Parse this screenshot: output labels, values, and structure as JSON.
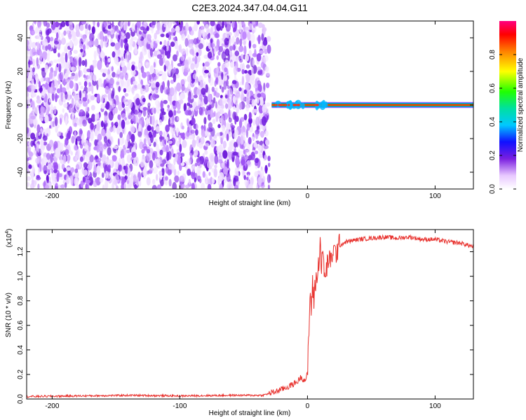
{
  "title": "C2E3.2024.347.04.04.G11",
  "chart_data": [
    {
      "type": "heatmap",
      "xlabel": "Height of straight line (km)",
      "ylabel": "Frequency (Hz)",
      "xlim": [
        -220,
        130
      ],
      "ylim": [
        -50,
        50
      ],
      "xticks": [
        -200,
        -100,
        0,
        100
      ],
      "yticks": [
        -40,
        -20,
        0,
        20,
        40
      ],
      "noise_region_x": [
        -220,
        -30
      ],
      "signal": {
        "x_start": -28,
        "x_end": 130,
        "frequency": 0
      },
      "colorbar": {
        "label": "Normalized spectral amplitude",
        "range": [
          0,
          1
        ],
        "ticks": [
          "0.0",
          "0.2",
          "0.4",
          "0.6",
          "0.8"
        ],
        "tick_values": [
          0,
          0.2,
          0.4,
          0.6,
          0.8
        ]
      }
    },
    {
      "type": "line",
      "xlabel": "Height of straight line (km)",
      "ylabel": "SNR (10 * v/v)",
      "multiplier_label": "(x10",
      "multiplier_exp": "4",
      "multiplier_close": ")",
      "xlim": [
        -220,
        130
      ],
      "ylim": [
        0,
        1.38
      ],
      "xticks": [
        -200,
        -100,
        0,
        100
      ],
      "yticks": [
        0,
        0.2,
        0.4,
        0.6,
        0.8,
        1.0,
        1.2
      ],
      "ytick_labels": [
        "0.0",
        "0.2",
        "0.4",
        "0.6",
        "0.8",
        "1.0",
        "1.2"
      ],
      "series": [
        {
          "color": "#e8322e",
          "x": [
            -220,
            -180,
            -140,
            -100,
            -60,
            -35,
            -25,
            -15,
            -8,
            -5,
            -2,
            0,
            1,
            2,
            3,
            4,
            5,
            6,
            8,
            10,
            11,
            12,
            14,
            16,
            18,
            20,
            22,
            25,
            30,
            40,
            50,
            60,
            70,
            80,
            90,
            100,
            110,
            120,
            130
          ],
          "y": [
            0.02,
            0.025,
            0.03,
            0.025,
            0.03,
            0.03,
            0.06,
            0.1,
            0.14,
            0.18,
            0.15,
            0.2,
            0.5,
            0.85,
            0.75,
            0.92,
            0.8,
            0.95,
            1.0,
            1.3,
            1.05,
            1.2,
            0.95,
            1.15,
            1.1,
            1.22,
            1.18,
            1.25,
            1.28,
            1.3,
            1.31,
            1.32,
            1.31,
            1.32,
            1.3,
            1.3,
            1.28,
            1.27,
            1.24
          ]
        }
      ]
    }
  ]
}
